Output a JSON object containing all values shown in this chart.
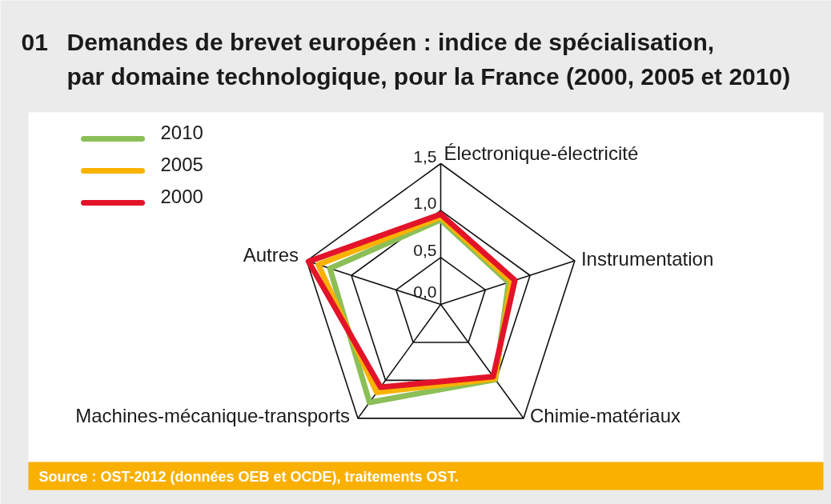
{
  "chart_data": {
    "type": "radar",
    "title": "Demandes de brevet européen : indice de spécialisation, par domaine technologique, pour la France (2000, 2005 et 2010)",
    "categories": [
      "Électronique-électricité",
      "Instrumentation",
      "Chimie-matériaux",
      "Machines-mécanique-transports",
      "Autres"
    ],
    "series": [
      {
        "name": "2010",
        "color": "#8cbf57",
        "values": [
          0.9,
          0.76,
          0.99,
          1.29,
          1.24
        ]
      },
      {
        "name": "2005",
        "color": "#f9b200",
        "values": [
          0.93,
          0.79,
          0.98,
          1.16,
          1.37
        ]
      },
      {
        "name": "2000",
        "color": "#e3142a",
        "values": [
          0.96,
          0.83,
          0.95,
          1.09,
          1.48
        ]
      }
    ],
    "ylim": [
      0,
      1.5
    ],
    "yticks": [
      {
        "value": 0,
        "label": "0,0"
      },
      {
        "value": 0.5,
        "label": "0,5"
      },
      {
        "value": 1,
        "label": "1,0"
      },
      {
        "value": 1.5,
        "label": "1,5"
      }
    ],
    "grid": true,
    "legend": "top left",
    "annotations": [
      "01",
      "Source : OST-2012 (données OEB et OCDE), traitements OST."
    ]
  }
}
